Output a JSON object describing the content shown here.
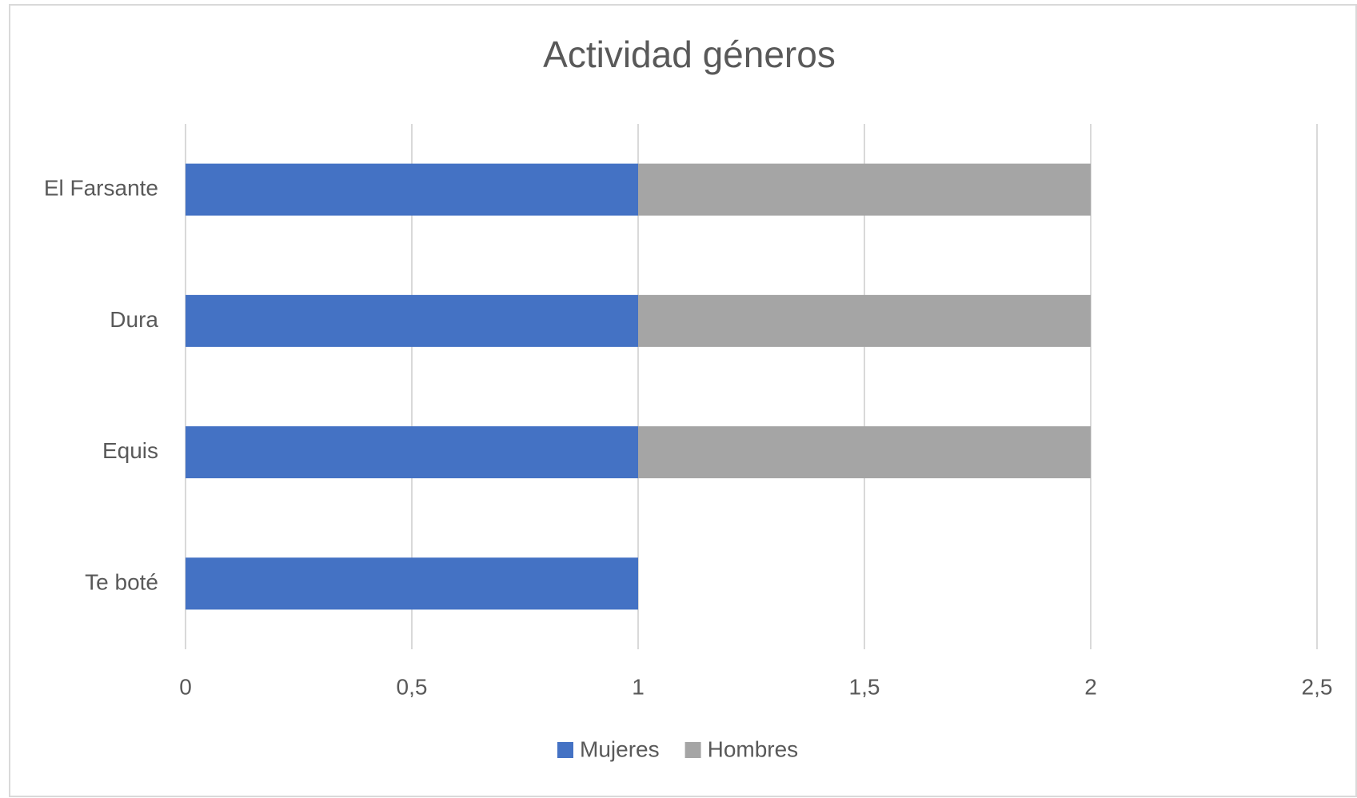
{
  "chart_data": {
    "type": "stacked_barh",
    "title": "Actividad géneros",
    "categories": [
      "El Farsante",
      "Dura",
      "Equis",
      "Te boté"
    ],
    "series": [
      {
        "name": "Mujeres",
        "color": "#4472c4",
        "values": [
          1,
          1,
          1,
          1
        ]
      },
      {
        "name": "Hombres",
        "color": "#a5a5a5",
        "values": [
          1,
          1,
          1,
          0
        ]
      }
    ],
    "xlim": [
      0,
      2.5
    ],
    "xticks": [
      0,
      {
        "value": 0.5,
        "label": "0,5"
      },
      1,
      {
        "value": 1.5,
        "label": "1,5"
      },
      2,
      {
        "value": 2.5,
        "label": "2,5"
      }
    ],
    "grid": true,
    "legend": "bottom"
  }
}
